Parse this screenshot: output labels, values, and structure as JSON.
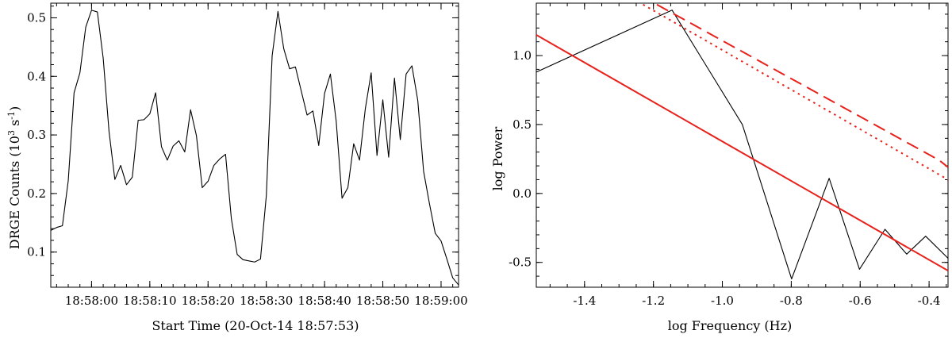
{
  "chart_data": [
    {
      "type": "line",
      "xlabel": "Start Time (20-Oct-14 18:57:53)",
      "ylabel_prefix": "DRGE Counts (10",
      "ylabel_exp1": "3",
      "ylabel_mid": " s",
      "ylabel_exp2": "-1",
      "ylabel_suffix": ")",
      "x_units": "seconds after 18:57:53",
      "xlim": [
        0,
        70
      ],
      "ylim": [
        0.04,
        0.525
      ],
      "x_ticks": [
        {
          "value": 7,
          "label": "18:58:00"
        },
        {
          "value": 17,
          "label": "18:58:10"
        },
        {
          "value": 27,
          "label": "18:58:20"
        },
        {
          "value": 37,
          "label": "18:58:30"
        },
        {
          "value": 47,
          "label": "18:58:40"
        },
        {
          "value": 57,
          "label": "18:58:50"
        },
        {
          "value": 67,
          "label": "18:59:00"
        }
      ],
      "y_ticks": [
        {
          "value": 0.1,
          "label": "0.1"
        },
        {
          "value": 0.2,
          "label": "0.2"
        },
        {
          "value": 0.3,
          "label": "0.3"
        },
        {
          "value": 0.4,
          "label": "0.4"
        },
        {
          "value": 0.5,
          "label": "0.5"
        }
      ],
      "series": [
        {
          "color": "#000000",
          "x": [
            0,
            1,
            2,
            3,
            4,
            5,
            6,
            7,
            8,
            9,
            10,
            11,
            12,
            13,
            14,
            15,
            16,
            17,
            18,
            19,
            20,
            21,
            22,
            23,
            24,
            25,
            26,
            27,
            28,
            29,
            30,
            31,
            32,
            33,
            34,
            35,
            36,
            37,
            38,
            39,
            40,
            41,
            42,
            43,
            44,
            45,
            46,
            47,
            48,
            49,
            50,
            51,
            52,
            53,
            54,
            55,
            56,
            57,
            58,
            59,
            60,
            61,
            62,
            63,
            64,
            65,
            66,
            67,
            68,
            69,
            70
          ],
          "y": [
            0.137,
            0.142,
            0.145,
            0.222,
            0.372,
            0.406,
            0.484,
            0.513,
            0.51,
            0.431,
            0.306,
            0.224,
            0.248,
            0.215,
            0.228,
            0.325,
            0.326,
            0.336,
            0.372,
            0.28,
            0.257,
            0.281,
            0.29,
            0.271,
            0.343,
            0.299,
            0.21,
            0.221,
            0.248,
            0.259,
            0.267,
            0.157,
            0.096,
            0.087,
            0.085,
            0.083,
            0.088,
            0.196,
            0.435,
            0.511,
            0.447,
            0.413,
            0.416,
            0.375,
            0.334,
            0.341,
            0.282,
            0.371,
            0.404,
            0.323,
            0.192,
            0.21,
            0.285,
            0.257,
            0.345,
            0.406,
            0.265,
            0.36,
            0.262,
            0.397,
            0.292,
            0.404,
            0.418,
            0.359,
            0.238,
            0.183,
            0.132,
            0.119,
            0.088,
            0.056,
            0.044
          ]
        }
      ]
    },
    {
      "type": "line",
      "xlabel": "log Frequency (Hz)",
      "ylabel": "log Power",
      "xlim": [
        -1.54,
        -0.345
      ],
      "ylim": [
        -0.68,
        1.38
      ],
      "x_ticks": [
        {
          "value": -1.4,
          "label": "-1.4"
        },
        {
          "value": -1.2,
          "label": "-1.2"
        },
        {
          "value": -1.0,
          "label": "-1.0"
        },
        {
          "value": -0.8,
          "label": "-0.8"
        },
        {
          "value": -0.6,
          "label": "-0.6"
        },
        {
          "value": -0.4,
          "label": "-0.4"
        }
      ],
      "y_ticks": [
        {
          "value": -0.5,
          "label": "-0.5"
        },
        {
          "value": 0.0,
          "label": "0.0"
        },
        {
          "value": 0.5,
          "label": "0.5"
        },
        {
          "value": 1.0,
          "label": "1.0"
        }
      ],
      "series": [
        {
          "color": "#000000",
          "style": "solid",
          "x": [
            -1.54,
            -1.146,
            -0.942,
            -0.799,
            -0.69,
            -0.602,
            -0.528,
            -0.465,
            -0.41,
            -0.345
          ],
          "y": [
            0.88,
            1.33,
            0.5,
            -0.62,
            0.11,
            -0.55,
            -0.26,
            -0.44,
            -0.31,
            -0.47
          ]
        },
        {
          "color": "#e8211b",
          "style": "solid",
          "x": [
            -1.54,
            -0.345
          ],
          "y": [
            1.15,
            -0.56
          ]
        },
        {
          "color": "#e8211b",
          "style": "dotted",
          "x": [
            -1.23,
            -0.345
          ],
          "y": [
            1.37,
            0.1
          ]
        },
        {
          "color": "#e8211b",
          "style": "dashed",
          "x": [
            -1.19,
            -0.37,
            -0.345
          ],
          "y": [
            1.37,
            0.24,
            0.19
          ]
        }
      ]
    }
  ]
}
